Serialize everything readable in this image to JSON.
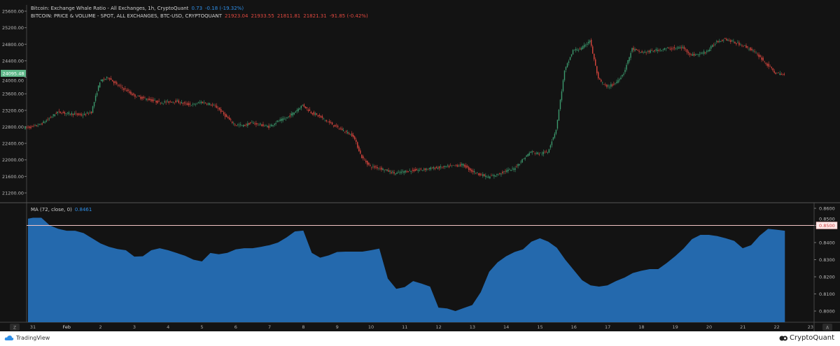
{
  "legend": {
    "line1_title": "Bitcoin: Exchange Whale Ratio - All Exchanges, 1h, CryptoQuant",
    "line1_value": "0.73",
    "line1_change": "-0.18 (-19.32%)",
    "line2_title": "BITCOIN: PRICE & VOLUME - SPOT, ALL EXCHANGES, BTC-USD, CRYPTOQUANT",
    "line2_values": [
      "21923.04",
      "21933.55",
      "21811.81",
      "21821.31",
      "-91.85 (-0.42%)"
    ],
    "ma_title": "MA (72, close, 0)",
    "ma_value": "0.8461"
  },
  "colors": {
    "up": "#3c9a6e",
    "down": "#d9463e",
    "area": "#2469ad",
    "threshold": "#f2c4c4",
    "current_price_bg": "#5fb98a"
  },
  "price_axis": {
    "ticks": [
      "25600.00",
      "25200.00",
      "24800.00",
      "24400.00",
      "24000.00",
      "23600.00",
      "23200.00",
      "22800.00",
      "22400.00",
      "22000.00",
      "21600.00",
      "21200.00"
    ],
    "current_price_label": "24095.48"
  },
  "ratio_axis": {
    "ticks": [
      "0.8600",
      "0.8500",
      "0.8400",
      "0.8300",
      "0.8200",
      "0.8100",
      "0.8000"
    ],
    "threshold_label": "0.8500"
  },
  "time_axis": {
    "labels": [
      "31",
      "Feb",
      "2",
      "3",
      "4",
      "5",
      "6",
      "7",
      "8",
      "9",
      "10",
      "11",
      "12",
      "13",
      "14",
      "15",
      "16",
      "17",
      "18",
      "19",
      "20",
      "21",
      "22",
      "23"
    ],
    "left_button": "Z",
    "right_button": "A"
  },
  "footer": {
    "left_brand": "TradingView",
    "right_brand": "CryptoQuant"
  },
  "chart_data": [
    {
      "type": "candlestick",
      "title": "BITCOIN: PRICE & VOLUME - SPOT, ALL EXCHANGES, BTC-USD, CRYPTOQUANT",
      "ylim": [
        21100,
        25700
      ],
      "first_time": "Jan 30 18:00",
      "interval_hours": 6,
      "close": [
        22775,
        22800,
        22860,
        23000,
        23160,
        23130,
        23110,
        23080,
        23160,
        23900,
        24000,
        23820,
        23700,
        23560,
        23500,
        23450,
        23390,
        23400,
        23420,
        23360,
        23330,
        23400,
        23350,
        23250,
        23030,
        22850,
        22830,
        22900,
        22850,
        22800,
        22930,
        23000,
        23150,
        23330,
        23150,
        23050,
        22920,
        22800,
        22690,
        22580,
        22060,
        21840,
        21810,
        21740,
        21670,
        21720,
        21740,
        21760,
        21790,
        21810,
        21830,
        21860,
        21880,
        21730,
        21650,
        21580,
        21640,
        21730,
        21780,
        22000,
        22200,
        22150,
        22190,
        22740,
        24150,
        24650,
        24690,
        24900,
        23950,
        23760,
        23850,
        24100,
        24690,
        24600,
        24620,
        24660,
        24690,
        24700,
        24720,
        24540,
        24560,
        24650,
        24860,
        24930,
        24850,
        24780,
        24680,
        24520,
        24300,
        24100,
        24060
      ]
    },
    {
      "type": "area",
      "title": "MA (72, close, 0)",
      "ylim": [
        0.7935,
        0.8625
      ],
      "threshold": 0.85,
      "first_time": "Jan 30 18:00",
      "interval_hours": 6,
      "values": [
        0.8539,
        0.8545,
        0.8545,
        0.85,
        0.848,
        0.8469,
        0.8469,
        0.8455,
        0.8425,
        0.8395,
        0.8375,
        0.8362,
        0.8355,
        0.8318,
        0.832,
        0.8355,
        0.8367,
        0.8355,
        0.8339,
        0.8323,
        0.83,
        0.829,
        0.8339,
        0.8332,
        0.834,
        0.836,
        0.8367,
        0.8367,
        0.8375,
        0.8385,
        0.84,
        0.843,
        0.8465,
        0.847,
        0.834,
        0.8312,
        0.8325,
        0.8345,
        0.8347,
        0.8347,
        0.8347,
        0.8355,
        0.8365,
        0.819,
        0.813,
        0.814,
        0.8175,
        0.816,
        0.8143,
        0.802,
        0.8015,
        0.8,
        0.8018,
        0.8035,
        0.811,
        0.823,
        0.8285,
        0.832,
        0.8345,
        0.836,
        0.8405,
        0.8425,
        0.8405,
        0.837,
        0.83,
        0.824,
        0.818,
        0.815,
        0.8143,
        0.815,
        0.8175,
        0.8195,
        0.8222,
        0.8235,
        0.8245,
        0.8245,
        0.828,
        0.832,
        0.8365,
        0.842,
        0.8445,
        0.8445,
        0.8438,
        0.8425,
        0.841,
        0.8367,
        0.8385,
        0.844,
        0.848,
        0.8475,
        0.8469
      ]
    }
  ]
}
